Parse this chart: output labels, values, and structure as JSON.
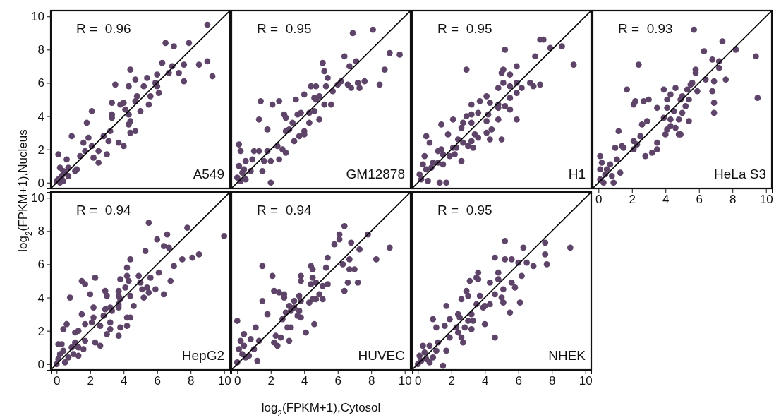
{
  "chart_data": [
    {
      "type": "scatter",
      "title": "A549",
      "annotations": [
        "R =  0.96"
      ],
      "ylabel": "log$_{2}$(FPKM+1),Nucleus",
      "xlim": [
        -0.35,
        10.35
      ],
      "ylim": [
        -0.35,
        10.35
      ],
      "yticks": [
        0,
        2,
        4,
        6,
        8,
        10
      ],
      "tick_labels": "y",
      "marker": "circle",
      "series": [
        {
          "color": "#5e4468",
          "x": [
            9.0,
            6.5,
            7.0,
            7.9,
            6.3,
            6.9,
            7.6,
            8.5,
            9.0,
            9.3,
            6.7,
            7.3,
            7.6,
            6.0,
            4.4,
            3.5,
            4.3,
            4.7,
            5.4,
            5.2,
            5.9,
            6.0,
            6.1,
            5.6,
            5.5,
            4.8,
            4.7,
            5.0,
            3.3,
            4.0,
            3.8,
            4.1,
            3.3,
            3.3,
            4.3,
            4.4,
            4.3,
            4.4,
            4.7,
            3.2,
            2.8,
            3.1,
            3.7,
            4.0,
            2.1,
            1.8,
            1.9,
            1.6,
            2.1,
            0.9,
            1.4,
            1.7,
            2.2,
            2.5,
            2.5,
            3.0,
            0.1,
            0.6,
            1.2,
            1.1,
            0.7,
            0.2,
            0.3,
            0.5,
            0.1,
            0.4,
            0.7,
            0.4,
            0.0,
            0.2
          ],
          "values": [
            9.5,
            8.4,
            8.2,
            8.4,
            7.2,
            7.0,
            7.1,
            7.1,
            7.3,
            6.4,
            6.6,
            6.6,
            6.1,
            6.5,
            6.8,
            5.9,
            5.8,
            6.2,
            6.3,
            5.8,
            6.0,
            5.8,
            5.4,
            5.2,
            4.7,
            5.2,
            4.9,
            4.3,
            4.8,
            4.8,
            4.7,
            4.4,
            4.1,
            3.9,
            4.1,
            3.7,
            3.5,
            3.0,
            3.1,
            3.1,
            2.8,
            2.5,
            2.4,
            2.2,
            4.3,
            3.6,
            2.7,
            2.4,
            2.2,
            2.8,
            1.6,
            1.9,
            1.5,
            1.9,
            1.2,
            1.7,
            1.7,
            1.4,
            0.8,
            0.7,
            0.9,
            0.9,
            0.4,
            0.6,
            0.2,
            0.1,
            0.4,
            0.7,
            0.1,
            0.0
          ]
        },
        {
          "type": "line",
          "marker": "none",
          "color": "#000000",
          "x": [
            -0.35,
            10.35
          ],
          "values": [
            -0.35,
            10.35
          ]
        }
      ]
    },
    {
      "type": "scatter",
      "title": "GM12878",
      "annotations": [
        "R =  0.95"
      ],
      "xlim": [
        -0.35,
        10.35
      ],
      "ylim": [
        -0.35,
        10.35
      ],
      "tick_labels": false,
      "marker": "circle",
      "series": [
        {
          "color": "#5e4468",
          "x": [
            6.9,
            8.1,
            9.1,
            9.7,
            8.8,
            8.5,
            7.6,
            7.2,
            7.3,
            6.8,
            6.6,
            6.7,
            7.1,
            6.4,
            5.1,
            5.2,
            5.4,
            5.3,
            5.7,
            6.2,
            6.0,
            4.4,
            4.7,
            4.0,
            3.5,
            4.6,
            4.7,
            5.2,
            5.6,
            4.9,
            4.3,
            4.6,
            3.8,
            3.6,
            2.8,
            2.9,
            3.3,
            3.1,
            2.9,
            4.0,
            4.3,
            4.9,
            4.0,
            3.4,
            3.7,
            1.4,
            2.1,
            2.5,
            1.3,
            1.8,
            2.4,
            2.7,
            2.9,
            2.5,
            1.6,
            2.0,
            1.8,
            1.3,
            1.0,
            0.9,
            1.5,
            2.0,
            0.1,
            0.2,
            0.5,
            0.8,
            0.4,
            0.1,
            0.3,
            0.0,
            0.5,
            0.2
          ],
          "values": [
            9.0,
            9.2,
            7.8,
            7.7,
            6.8,
            5.9,
            6.1,
            6.0,
            5.7,
            5.7,
            5.9,
            7.0,
            7.3,
            7.6,
            7.2,
            6.7,
            6.3,
            5.8,
            5.5,
            6.1,
            5.9,
            5.8,
            5.8,
            5.3,
            5.0,
            5.1,
            5.0,
            4.7,
            4.7,
            5.2,
            4.2,
            4.3,
            4.2,
            4.1,
            4.1,
            3.9,
            3.6,
            3.2,
            3.1,
            3.1,
            3.6,
            3.8,
            2.9,
            2.5,
            2.8,
            4.9,
            4.7,
            4.9,
            3.8,
            3.2,
            2.2,
            2.0,
            1.8,
            1.4,
            1.3,
            1.3,
            1.9,
            1.9,
            1.9,
            1.4,
            0.7,
            0.0,
            2.3,
            1.9,
            1.3,
            0.7,
            0.8,
            1.0,
            0.6,
            0.3,
            0.2,
            0.1
          ]
        },
        {
          "type": "line",
          "marker": "none",
          "color": "#000000",
          "x": [
            -0.35,
            10.35
          ],
          "values": [
            -0.35,
            10.35
          ]
        }
      ]
    },
    {
      "type": "scatter",
      "title": "H1",
      "annotations": [
        "R =  0.95"
      ],
      "xlim": [
        -0.35,
        10.35
      ],
      "ylim": [
        -0.35,
        10.35
      ],
      "tick_labels": false,
      "marker": "circle",
      "series": [
        {
          "color": "#5e4468",
          "x": [
            7.3,
            7.5,
            7.9,
            8.6,
            9.3,
            7.0,
            5.2,
            2.9,
            5.9,
            5.1,
            5.0,
            5.5,
            6.7,
            6.9,
            7.3,
            5.9,
            5.5,
            6.2,
            5.1,
            4.8,
            5.9,
            5.5,
            4.1,
            4.3,
            3.7,
            4.8,
            4.8,
            5.2,
            5.5,
            3.2,
            3.2,
            3.6,
            4.2,
            4.1,
            4.8,
            5.9,
            2.9,
            2.7,
            3.2,
            2.1,
            1.4,
            2.6,
            1.8,
            4.1,
            4.4,
            3.4,
            3.6,
            4.3,
            5.0,
            0.5,
            0.7,
            2.4,
            2.7,
            3.2,
            3.3,
            3.0,
            2.3,
            2.1,
            1.2,
            1.4,
            1.5,
            1.9,
            2.2,
            2.6,
            0.4,
            1.2,
            1.5,
            0.8,
            0.3,
            0.5,
            0.1,
            0.6,
            0.2,
            1.3,
            1.7,
            0.9
          ],
          "values": [
            8.6,
            8.6,
            8.1,
            8.2,
            7.1,
            7.6,
            8.0,
            6.8,
            7.0,
            6.8,
            6.6,
            6.5,
            6.0,
            5.8,
            5.9,
            6.0,
            5.8,
            5.7,
            6.0,
            5.7,
            5.4,
            5.1,
            5.2,
            4.8,
            4.9,
            4.7,
            4.5,
            4.6,
            4.4,
            4.7,
            4.1,
            4.2,
            4.1,
            3.7,
            3.8,
            3.8,
            4.0,
            3.6,
            3.6,
            3.8,
            3.5,
            3.3,
            2.9,
            3.0,
            3.2,
            2.9,
            2.7,
            2.6,
            2.6,
            2.8,
            2.4,
            2.6,
            2.4,
            2.5,
            2.1,
            2.2,
            2.1,
            2.1,
            1.9,
            2.0,
            1.7,
            1.6,
            1.7,
            1.3,
            1.6,
            1.2,
            1.1,
            0.9,
            1.1,
            0.8,
            0.5,
            0.1,
            0.2,
            0.0,
            0.0,
            1.2
          ]
        },
        {
          "type": "line",
          "marker": "none",
          "color": "#000000",
          "x": [
            -0.35,
            10.35
          ],
          "values": [
            -0.35,
            10.35
          ]
        }
      ]
    },
    {
      "type": "scatter",
      "title": "HeLa S3",
      "annotations": [
        "R =  0.93"
      ],
      "xlim": [
        -0.35,
        10.35
      ],
      "ylim": [
        -0.35,
        10.35
      ],
      "xticks": [
        0,
        2,
        4,
        6,
        8,
        10
      ],
      "tick_labels": "x",
      "marker": "circle",
      "series": [
        {
          "color": "#5e4468",
          "x": [
            5.7,
            7.4,
            8.2,
            9.4,
            6.3,
            6.8,
            7.2,
            7.2,
            2.4,
            5.8,
            5.8,
            7.6,
            6.9,
            6.4,
            9.5,
            6.8,
            6.9,
            6.9,
            5.6,
            5.5,
            5.9,
            5.3,
            5.0,
            4.6,
            3.9,
            4.3,
            4.1,
            4.9,
            5.4,
            5.2,
            4.1,
            4.5,
            5.0,
            3.5,
            3.9,
            4.3,
            4.8,
            5.4,
            4.3,
            4.1,
            4.6,
            4.0,
            4.8,
            4.9,
            1.7,
            2.2,
            2.1,
            2.7,
            3.0,
            2.6,
            2.9,
            1.2,
            1.0,
            1.4,
            1.5,
            2.1,
            2.5,
            2.3,
            2.1,
            2.8,
            3.2,
            3.5,
            3.5,
            1.1,
            0.7,
            1.3,
            0.1,
            0.2,
            0.1,
            0.5,
            0.8,
            0.9,
            0.1,
            0.4,
            0.3
          ],
          "values": [
            9.2,
            8.5,
            8.0,
            7.6,
            7.9,
            7.4,
            7.3,
            6.9,
            7.1,
            6.8,
            6.6,
            6.2,
            6.1,
            6.2,
            5.1,
            5.5,
            4.8,
            4.2,
            6.0,
            5.9,
            5.5,
            5.6,
            5.2,
            5.7,
            5.6,
            5.3,
            5.0,
            5.0,
            5.0,
            4.6,
            4.5,
            4.3,
            4.2,
            4.5,
            3.9,
            3.8,
            3.8,
            3.7,
            3.4,
            3.2,
            3.3,
            2.9,
            2.9,
            2.9,
            5.6,
            4.9,
            4.7,
            4.9,
            5.0,
            3.5,
            3.7,
            3.1,
            2.1,
            2.2,
            2.1,
            2.5,
            2.8,
            2.3,
            2.0,
            1.6,
            1.8,
            2.4,
            2.0,
            1.4,
            1.1,
            0.6,
            1.6,
            1.2,
            0.8,
            0.8,
            0.4,
            0.0,
            0.2,
            0.5,
            0.0
          ]
        },
        {
          "type": "line",
          "marker": "none",
          "color": "#000000",
          "x": [
            -0.35,
            10.35
          ],
          "values": [
            -0.35,
            10.35
          ]
        }
      ]
    },
    {
      "type": "scatter",
      "title": "HepG2",
      "annotations": [
        "R =  0.94"
      ],
      "xlim": [
        -0.35,
        10.35
      ],
      "ylim": [
        -0.35,
        10.35
      ],
      "xticks": [
        0,
        2,
        4,
        6,
        8,
        10
      ],
      "yticks": [
        0,
        2,
        4,
        6,
        8,
        10
      ],
      "marker": "circle",
      "series": [
        {
          "color": "#5e4468",
          "x": [
            5.5,
            7.8,
            10.0,
            6.6,
            6.0,
            6.4,
            6.7,
            5.3,
            8.5,
            8.1,
            7.5,
            7.0,
            6.1,
            6.8,
            5.6,
            4.9,
            5.0,
            5.1,
            5.4,
            5.9,
            5.5,
            6.4,
            5.2,
            4.4,
            4.2,
            4.2,
            4.3,
            4.1,
            3.8,
            3.7,
            3.7,
            3.8,
            4.4,
            4.6,
            3.7,
            3.7,
            3.3,
            3.2,
            2.9,
            2.8,
            4.2,
            4.4,
            3.2,
            4.2,
            3.8,
            3.2,
            3.0,
            3.7,
            2.9,
            3.0,
            2.3,
            1.5,
            1.7,
            2.0,
            2.2,
            2.2,
            2.1,
            1.5,
            1.7,
            0.8,
            0.6,
            0.4,
            1.1,
            1.3,
            2.6,
            2.3,
            2.6,
            1.7,
            1.6,
            1.1,
            1.3,
            1.3,
            1.0,
            0.9,
            0.1,
            0.3,
            0.7,
            0.5,
            0.2,
            0.1,
            0.4,
            0.0
          ],
          "values": [
            8.5,
            8.2,
            7.7,
            7.8,
            7.5,
            7.1,
            7.0,
            6.8,
            6.6,
            6.4,
            6.3,
            5.9,
            5.5,
            5.0,
            5.2,
            5.3,
            4.9,
            4.5,
            4.6,
            4.5,
            4.3,
            4.2,
            4.0,
            6.3,
            5.8,
            5.3,
            5.0,
            4.6,
            5.1,
            4.4,
            4.1,
            3.9,
            4.1,
            3.5,
            3.6,
            3.4,
            3.2,
            3.4,
            3.3,
            2.9,
            2.8,
            2.8,
            2.5,
            2.3,
            2.2,
            2.1,
            1.8,
            1.7,
            4.4,
            4.1,
            5.2,
            5.0,
            4.8,
            4.2,
            3.4,
            2.8,
            2.5,
            3.0,
            2.4,
            4.0,
            2.4,
            2.1,
            1.9,
            2.0,
            2.3,
            1.3,
            1.1,
            1.4,
            0.9,
            1.3,
            1.0,
            0.5,
            0.6,
            1.0,
            1.2,
            1.2,
            0.4,
            0.1,
            0.6,
            0.3,
            0.8,
            0.0
          ]
        },
        {
          "type": "line",
          "marker": "none",
          "color": "#000000",
          "x": [
            -0.35,
            10.35
          ],
          "values": [
            -0.35,
            10.35
          ]
        }
      ]
    },
    {
      "type": "scatter",
      "title": "HUVEC",
      "annotations": [
        "R =  0.94"
      ],
      "xlabel": "log$_{2}$(FPKM+1),Cytosol",
      "xlim": [
        -0.35,
        10.35
      ],
      "ylim": [
        -0.35,
        10.35
      ],
      "xticks": [
        0,
        2,
        4,
        6,
        8,
        10
      ],
      "tick_labels": "x",
      "marker": "circle",
      "series": [
        {
          "color": "#5e4468",
          "x": [
            6.4,
            6.1,
            6.1,
            5.8,
            6.8,
            7.8,
            7.3,
            9.1,
            8.3,
            6.7,
            6.3,
            5.4,
            5.3,
            6.7,
            7.0,
            7.2,
            6.6,
            6.4,
            5.4,
            5.1,
            4.4,
            4.5,
            4.5,
            4.4,
            4.7,
            3.8,
            3.8,
            4.9,
            5.1,
            4.7,
            4.5,
            4.3,
            3.7,
            3.8,
            3.4,
            3.1,
            3.4,
            3.7,
            3.2,
            2.9,
            3.8,
            3.6,
            2.8,
            2.8,
            2.5,
            2.2,
            2.1,
            1.5,
            1.5,
            1.8,
            2.7,
            3.0,
            3.2,
            3.1,
            4.1,
            4.6,
            2.3,
            2.6,
            2.2,
            2.4,
            1.3,
            1.1,
            0.8,
            0.4,
            0.0,
            0.2,
            0.4,
            1.0,
            1.2,
            0.7,
            0.1,
            0.5,
            0.0,
            0.3
          ],
          "values": [
            8.3,
            7.8,
            7.5,
            7.2,
            7.3,
            7.8,
            6.9,
            7.0,
            6.3,
            6.3,
            6.0,
            6.4,
            5.8,
            5.7,
            5.7,
            4.9,
            4.9,
            4.4,
            4.8,
            4.7,
            5.9,
            5.7,
            5.2,
            4.8,
            4.9,
            5.3,
            5.0,
            4.2,
            3.9,
            3.9,
            3.9,
            3.7,
            4.1,
            3.8,
            3.8,
            3.5,
            3.4,
            3.2,
            3.2,
            3.1,
            2.8,
            2.9,
            4.0,
            4.2,
            4.3,
            4.4,
            5.3,
            5.9,
            3.8,
            3.0,
            2.7,
            2.2,
            2.2,
            1.4,
            1.9,
            2.4,
            1.7,
            1.6,
            1.3,
            1.1,
            1.4,
            2.2,
            1.5,
            1.8,
            2.6,
            1.4,
            1.1,
            0.9,
            0.2,
            0.5,
            0.9,
            0.4,
            0.1,
            0.6
          ]
        },
        {
          "type": "line",
          "marker": "none",
          "color": "#000000",
          "x": [
            -0.35,
            10.35
          ],
          "values": [
            -0.35,
            10.35
          ]
        }
      ]
    },
    {
      "type": "scatter",
      "title": "NHEK",
      "annotations": [
        "R =  0.95"
      ],
      "xlim": [
        -0.35,
        10.35
      ],
      "ylim": [
        -0.35,
        10.35
      ],
      "xticks": [
        0,
        2,
        4,
        6,
        8,
        10
      ],
      "tick_labels": "x",
      "marker": "circle",
      "series": [
        {
          "color": "#5e4468",
          "x": [
            5.2,
            7.6,
            9.1,
            6.3,
            7.6,
            7.7,
            6.9,
            6.5,
            6.0,
            5.6,
            5.2,
            4.6,
            6.2,
            6.1,
            5.5,
            4.6,
            3.6,
            3.5,
            3.6,
            3.1,
            4.3,
            4.8,
            4.8,
            5.1,
            5.6,
            5.8,
            5.0,
            5.1,
            4.6,
            4.3,
            4.0,
            3.7,
            3.5,
            3.9,
            2.9,
            3.0,
            2.6,
            2.4,
            2.5,
            3.2,
            3.3,
            3.0,
            2.8,
            3.2,
            4.0,
            1.7,
            0.9,
            1.1,
            1.6,
            1.9,
            2.3,
            2.4,
            1.9,
            2.6,
            2.7,
            1.2,
            1.7,
            1.5,
            0.3,
            0.7,
            1.1,
            0.9,
            0.1,
            0.5,
            0.2,
            0.7,
            0.0,
            0.4
          ],
          "values": [
            7.4,
            7.3,
            7.0,
            7.0,
            6.6,
            6.0,
            5.9,
            6.1,
            6.1,
            6.3,
            6.3,
            6.4,
            5.3,
            3.7,
            3.1,
            1.6,
            5.5,
            5.2,
            5.1,
            5.0,
            4.9,
            5.5,
            5.1,
            4.5,
            4.9,
            4.6,
            4.0,
            3.7,
            4.2,
            3.6,
            3.5,
            4.1,
            3.6,
            3.4,
            4.4,
            4.1,
            3.9,
            3.0,
            2.8,
            3.0,
            2.6,
            2.6,
            2.2,
            2.1,
            2.4,
            3.5,
            2.7,
            2.2,
            2.3,
            2.7,
            2.2,
            1.9,
            1.6,
            1.6,
            1.3,
            1.3,
            0.8,
            -0.1,
            1.1,
            1.1,
            0.8,
            0.4,
            0.5,
            0.3,
            0.2,
            0.1,
            0.0,
            0.7
          ]
        },
        {
          "type": "line",
          "marker": "none",
          "color": "#000000",
          "x": [
            -0.35,
            10.35
          ],
          "values": [
            -0.35,
            10.35
          ]
        }
      ]
    }
  ]
}
